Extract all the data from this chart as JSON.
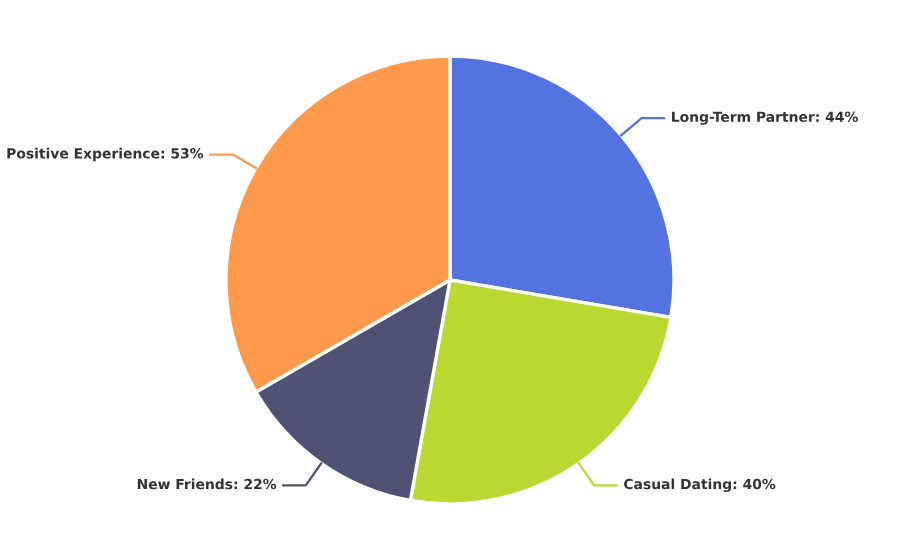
{
  "chart_data": {
    "type": "pie",
    "categories": [
      "Long-Term Partner",
      "Casual Dating",
      "New Friends",
      "Positive Experience"
    ],
    "values": [
      44,
      40,
      22,
      53
    ],
    "colors": [
      "#5273e0",
      "#bad832",
      "#4f5175",
      "#ff9a4d"
    ],
    "value_labels": [
      "44%",
      "40%",
      "22%",
      "53%"
    ]
  }
}
